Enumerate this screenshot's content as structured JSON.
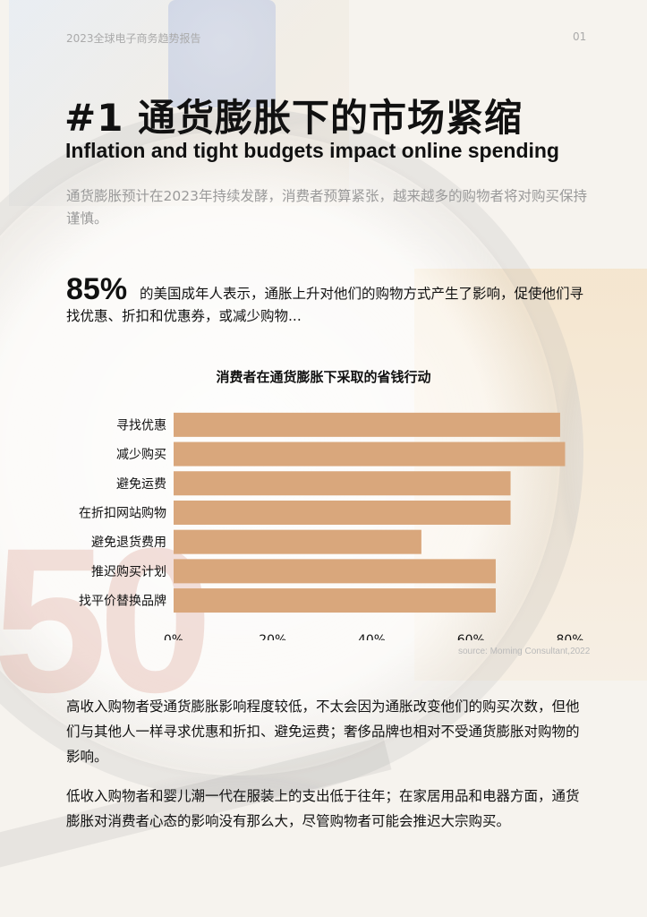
{
  "header": {
    "report": "2023全球电子商务趋势报告",
    "page": "01"
  },
  "title": {
    "cn": "#1 通货膨胀下的市场紧缩",
    "en": "Inflation and tight budgets impact online spending"
  },
  "intro": "通货膨胀预计在2023年持续发酵，消费者预算紧张，越来越多的购物者将对购买保持谨慎。",
  "stat": {
    "value": "85%",
    "text": "的美国成年人表示，通胀上升对他们的购物方式产生了影响，促使他们寻找优惠、折扣和优惠券，或减少购物..."
  },
  "chart_data": {
    "type": "bar",
    "orientation": "horizontal",
    "title": "消费者在通货膨胀下采取的省钱行动",
    "categories": [
      "寻找优惠",
      "减少购买",
      "避免运费",
      "在折扣网站购物",
      "避免退货费用",
      "推迟购买计划",
      "找平价替换品牌"
    ],
    "values": [
      78,
      79,
      68,
      68,
      50,
      65,
      65
    ],
    "x_ticks": [
      "0%",
      "20%",
      "40%",
      "60%",
      "80%"
    ],
    "xlim": [
      0,
      80
    ],
    "bar_color": "#d9a77c",
    "grid": false,
    "source": "source: Morning Consultant,2022"
  },
  "paragraphs": [
    "高收入购物者受通货膨胀影响程度较低，不太会因为通胀改变他们的购买次数，但他们与其他人一样寻求优惠和折扣、避免运费；奢侈品牌也相对不受通货膨胀对购物的影响。",
    "低收入购物者和婴儿潮一代在服装上的支出低于往年；在家居用品和电器方面，通货膨胀对消费者心态的影响没有那么大，尽管购物者可能会推迟大宗购买。"
  ]
}
